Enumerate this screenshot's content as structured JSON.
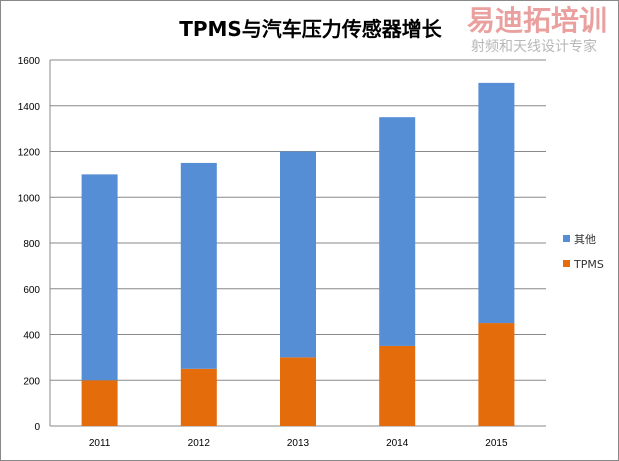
{
  "chart_data": {
    "type": "bar",
    "stacked": true,
    "title": "TPMS与汽车压力传感器增长",
    "categories": [
      "2011",
      "2012",
      "2013",
      "2014",
      "2015"
    ],
    "series": [
      {
        "name": "TPMS",
        "values": [
          200,
          250,
          300,
          350,
          450
        ],
        "color": "#E46C0A"
      },
      {
        "name": "其他",
        "values": [
          900,
          900,
          900,
          1000,
          1050
        ],
        "color": "#558ED5"
      }
    ],
    "ylim": [
      0,
      1600
    ],
    "yticks": [
      0,
      200,
      400,
      600,
      800,
      1000,
      1200,
      1400,
      1600
    ],
    "grid": true,
    "legend": "right"
  },
  "watermark": {
    "line1": "易迪拓培训",
    "line2": "射频和天线设计专家"
  }
}
